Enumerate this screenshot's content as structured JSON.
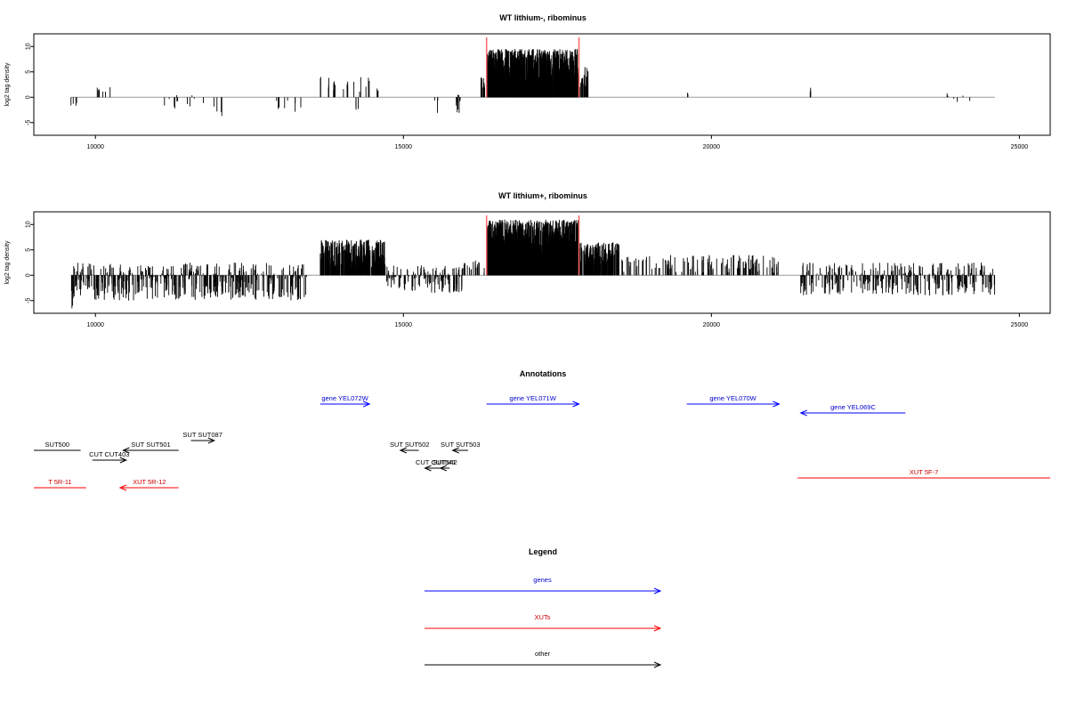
{
  "chart_data": [
    {
      "type": "bar",
      "title": "WT lithium-, ribominus",
      "xlabel": "",
      "ylabel": "log2 tag density",
      "xlim": [
        9000,
        25500
      ],
      "ylim": [
        -7.5,
        12.5
      ],
      "xticks": [
        "10000",
        "15000",
        "20000",
        "25000"
      ],
      "yticks": [
        "-5",
        "0",
        "5",
        "10"
      ],
      "baseline": {
        "x": [
          9600,
          24600
        ],
        "color": "#999999"
      },
      "markers": {
        "x": [
          16350,
          17850
        ],
        "y_top": 11.8,
        "color": "#ff6666"
      },
      "segments": [
        {
          "x": [
            9600,
            9700
          ],
          "min": -4,
          "max": -0.5,
          "density": 0.04
        },
        {
          "x": [
            10000,
            10250
          ],
          "min": 0.8,
          "max": 3,
          "density": 0.03
        },
        {
          "x": [
            11000,
            11800
          ],
          "min": -2.5,
          "max": 0.5,
          "density": 0.015
        },
        {
          "x": [
            11900,
            12100
          ],
          "min": -4,
          "max": -1,
          "density": 0.02
        },
        {
          "x": [
            12900,
            13350
          ],
          "min": -3,
          "max": -0.5,
          "density": 0.02
        },
        {
          "x": [
            13650,
            14450
          ],
          "min": 0.8,
          "max": 4,
          "density": 0.025
        },
        {
          "x": [
            14200,
            14300
          ],
          "min": -2.5,
          "max": -1,
          "density": 0.03
        },
        {
          "x": [
            14500,
            14600
          ],
          "min": 1,
          "max": 2.6,
          "density": 0.03
        },
        {
          "x": [
            15500,
            15560
          ],
          "min": -3.5,
          "max": 1.5,
          "density": 0.05
        },
        {
          "x": [
            15850,
            15950
          ],
          "min": -3.5,
          "max": 1,
          "density": 0.12
        },
        {
          "x": [
            16200,
            16330
          ],
          "min": 1,
          "max": 4,
          "density": 0.08
        },
        {
          "x": [
            16350,
            17850
          ],
          "min": 1.5,
          "max": 9.5,
          "density": 0.6
        },
        {
          "x": [
            17850,
            18000
          ],
          "min": 2,
          "max": 6,
          "density": 0.15
        },
        {
          "x": [
            19600,
            19630
          ],
          "min": 0.5,
          "max": 1,
          "density": 0.05
        },
        {
          "x": [
            21600,
            21700
          ],
          "min": 1,
          "max": 2.6,
          "density": 0.04
        },
        {
          "x": [
            23800,
            24300
          ],
          "min": -1.5,
          "max": 3.2,
          "density": 0.012
        }
      ]
    },
    {
      "type": "bar",
      "title": "WT lithium+, ribominus",
      "xlabel": "",
      "ylabel": "log2 tag density",
      "xlim": [
        9000,
        25500
      ],
      "ylim": [
        -7.5,
        12.5
      ],
      "xticks": [
        "10000",
        "15000",
        "20000",
        "25000"
      ],
      "yticks": [
        "-5",
        "0",
        "5",
        "10"
      ],
      "baseline": {
        "x": [
          9600,
          24600
        ],
        "color": "#999999"
      },
      "markers": {
        "x": [
          16350,
          17850
        ],
        "y_top": 11.8,
        "color": "#ff6666"
      },
      "segments": [
        {
          "x": [
            9600,
            13450
          ],
          "min": -5,
          "max": 2.5,
          "density": 0.12
        },
        {
          "x": [
            9600,
            9650
          ],
          "min": -7,
          "max": -2,
          "density": 0.05
        },
        {
          "x": [
            13650,
            14700
          ],
          "min": 1,
          "max": 7,
          "density": 0.3
        },
        {
          "x": [
            14700,
            15950
          ],
          "min": -3.5,
          "max": 2,
          "density": 0.1
        },
        {
          "x": [
            15950,
            16330
          ],
          "min": 0.5,
          "max": 3,
          "density": 0.06
        },
        {
          "x": [
            16350,
            17850
          ],
          "min": 2,
          "max": 11,
          "density": 0.7
        },
        {
          "x": [
            17850,
            18500
          ],
          "min": 1.5,
          "max": 6.5,
          "density": 0.3
        },
        {
          "x": [
            18500,
            21100
          ],
          "min": 0.5,
          "max": 4,
          "density": 0.05
        },
        {
          "x": [
            21450,
            24600
          ],
          "min": -4,
          "max": 2.5,
          "density": 0.1
        }
      ]
    }
  ],
  "annotations": {
    "title": "Annotations",
    "features": [
      {
        "label": "gene YEL072W",
        "start": 13650,
        "end": 14450,
        "strand": "+",
        "track": "gene",
        "row": 0,
        "text_color": "#0000cc",
        "line_color": "#0000ff"
      },
      {
        "label": "gene YEL071W",
        "start": 16350,
        "end": 17850,
        "strand": "+",
        "track": "gene",
        "row": 0,
        "text_color": "#0000cc",
        "line_color": "#0000ff"
      },
      {
        "label": "gene YEL070W",
        "start": 19600,
        "end": 21100,
        "strand": "+",
        "track": "gene",
        "row": 0,
        "text_color": "#0000cc",
        "line_color": "#0000ff"
      },
      {
        "label": "gene YEL069C",
        "start": 21450,
        "end": 23150,
        "strand": "-",
        "track": "gene",
        "row": 1,
        "text_color": "#0000cc",
        "line_color": "#0000ff"
      },
      {
        "label": "SUT500",
        "start": 9000,
        "end": 9760,
        "strand": "none",
        "track": "other",
        "row": 4,
        "text_color": "#000000",
        "line_color": "#000000"
      },
      {
        "label": "CUT CUT403",
        "start": 9950,
        "end": 10500,
        "strand": "+",
        "track": "other",
        "row": 5,
        "text_color": "#000000",
        "line_color": "#000000"
      },
      {
        "label": "SUT SUT501",
        "start": 10450,
        "end": 11350,
        "strand": "-",
        "track": "other",
        "row": 4,
        "text_color": "#000000",
        "line_color": "#000000"
      },
      {
        "label": "SUT SUT087",
        "start": 11550,
        "end": 11930,
        "strand": "+",
        "track": "other",
        "row": 3,
        "text_color": "#000000",
        "line_color": "#000000"
      },
      {
        "label": "SUT SUT502",
        "start": 14950,
        "end": 15250,
        "strand": "-",
        "track": "other",
        "row": 4,
        "text_color": "#000000",
        "line_color": "#000000"
      },
      {
        "label": "SUT SUT503",
        "start": 15800,
        "end": 16050,
        "strand": "-",
        "track": "other",
        "row": 4,
        "text_color": "#000000",
        "line_color": "#000000"
      },
      {
        "label": "CUT CUT541",
        "start": 15350,
        "end": 15700,
        "strand": "-",
        "track": "other",
        "row": 6,
        "text_color": "#000000",
        "line_color": "#000000"
      },
      {
        "label": "SUT542",
        "start": 15600,
        "end": 15750,
        "strand": "-",
        "track": "other",
        "row": 6,
        "text_color": "#000000",
        "line_color": "#000000"
      },
      {
        "label": "T 5R-11",
        "start": 9000,
        "end": 9850,
        "strand": "none",
        "track": "XUT",
        "row": 8,
        "text_color": "#cc0000",
        "line_color": "#ff0000"
      },
      {
        "label": "XUT 5R-12",
        "start": 10400,
        "end": 11350,
        "strand": "-",
        "track": "XUT",
        "row": 8,
        "text_color": "#cc0000",
        "line_color": "#ff0000"
      },
      {
        "label": "XUT 5F-7",
        "start": 21400,
        "end": 25500,
        "strand": "none",
        "track": "XUT",
        "row": 7,
        "text_color": "#cc0000",
        "line_color": "#ff0000"
      }
    ]
  },
  "legend": {
    "title": "Legend",
    "entries": [
      {
        "label": "genes",
        "color": "#0000ff",
        "text_color": "#0000cc"
      },
      {
        "label": "XUTs",
        "color": "#ff0000",
        "text_color": "#cc0000"
      },
      {
        "label": "other",
        "color": "#000000",
        "text_color": "#000000"
      }
    ]
  }
}
